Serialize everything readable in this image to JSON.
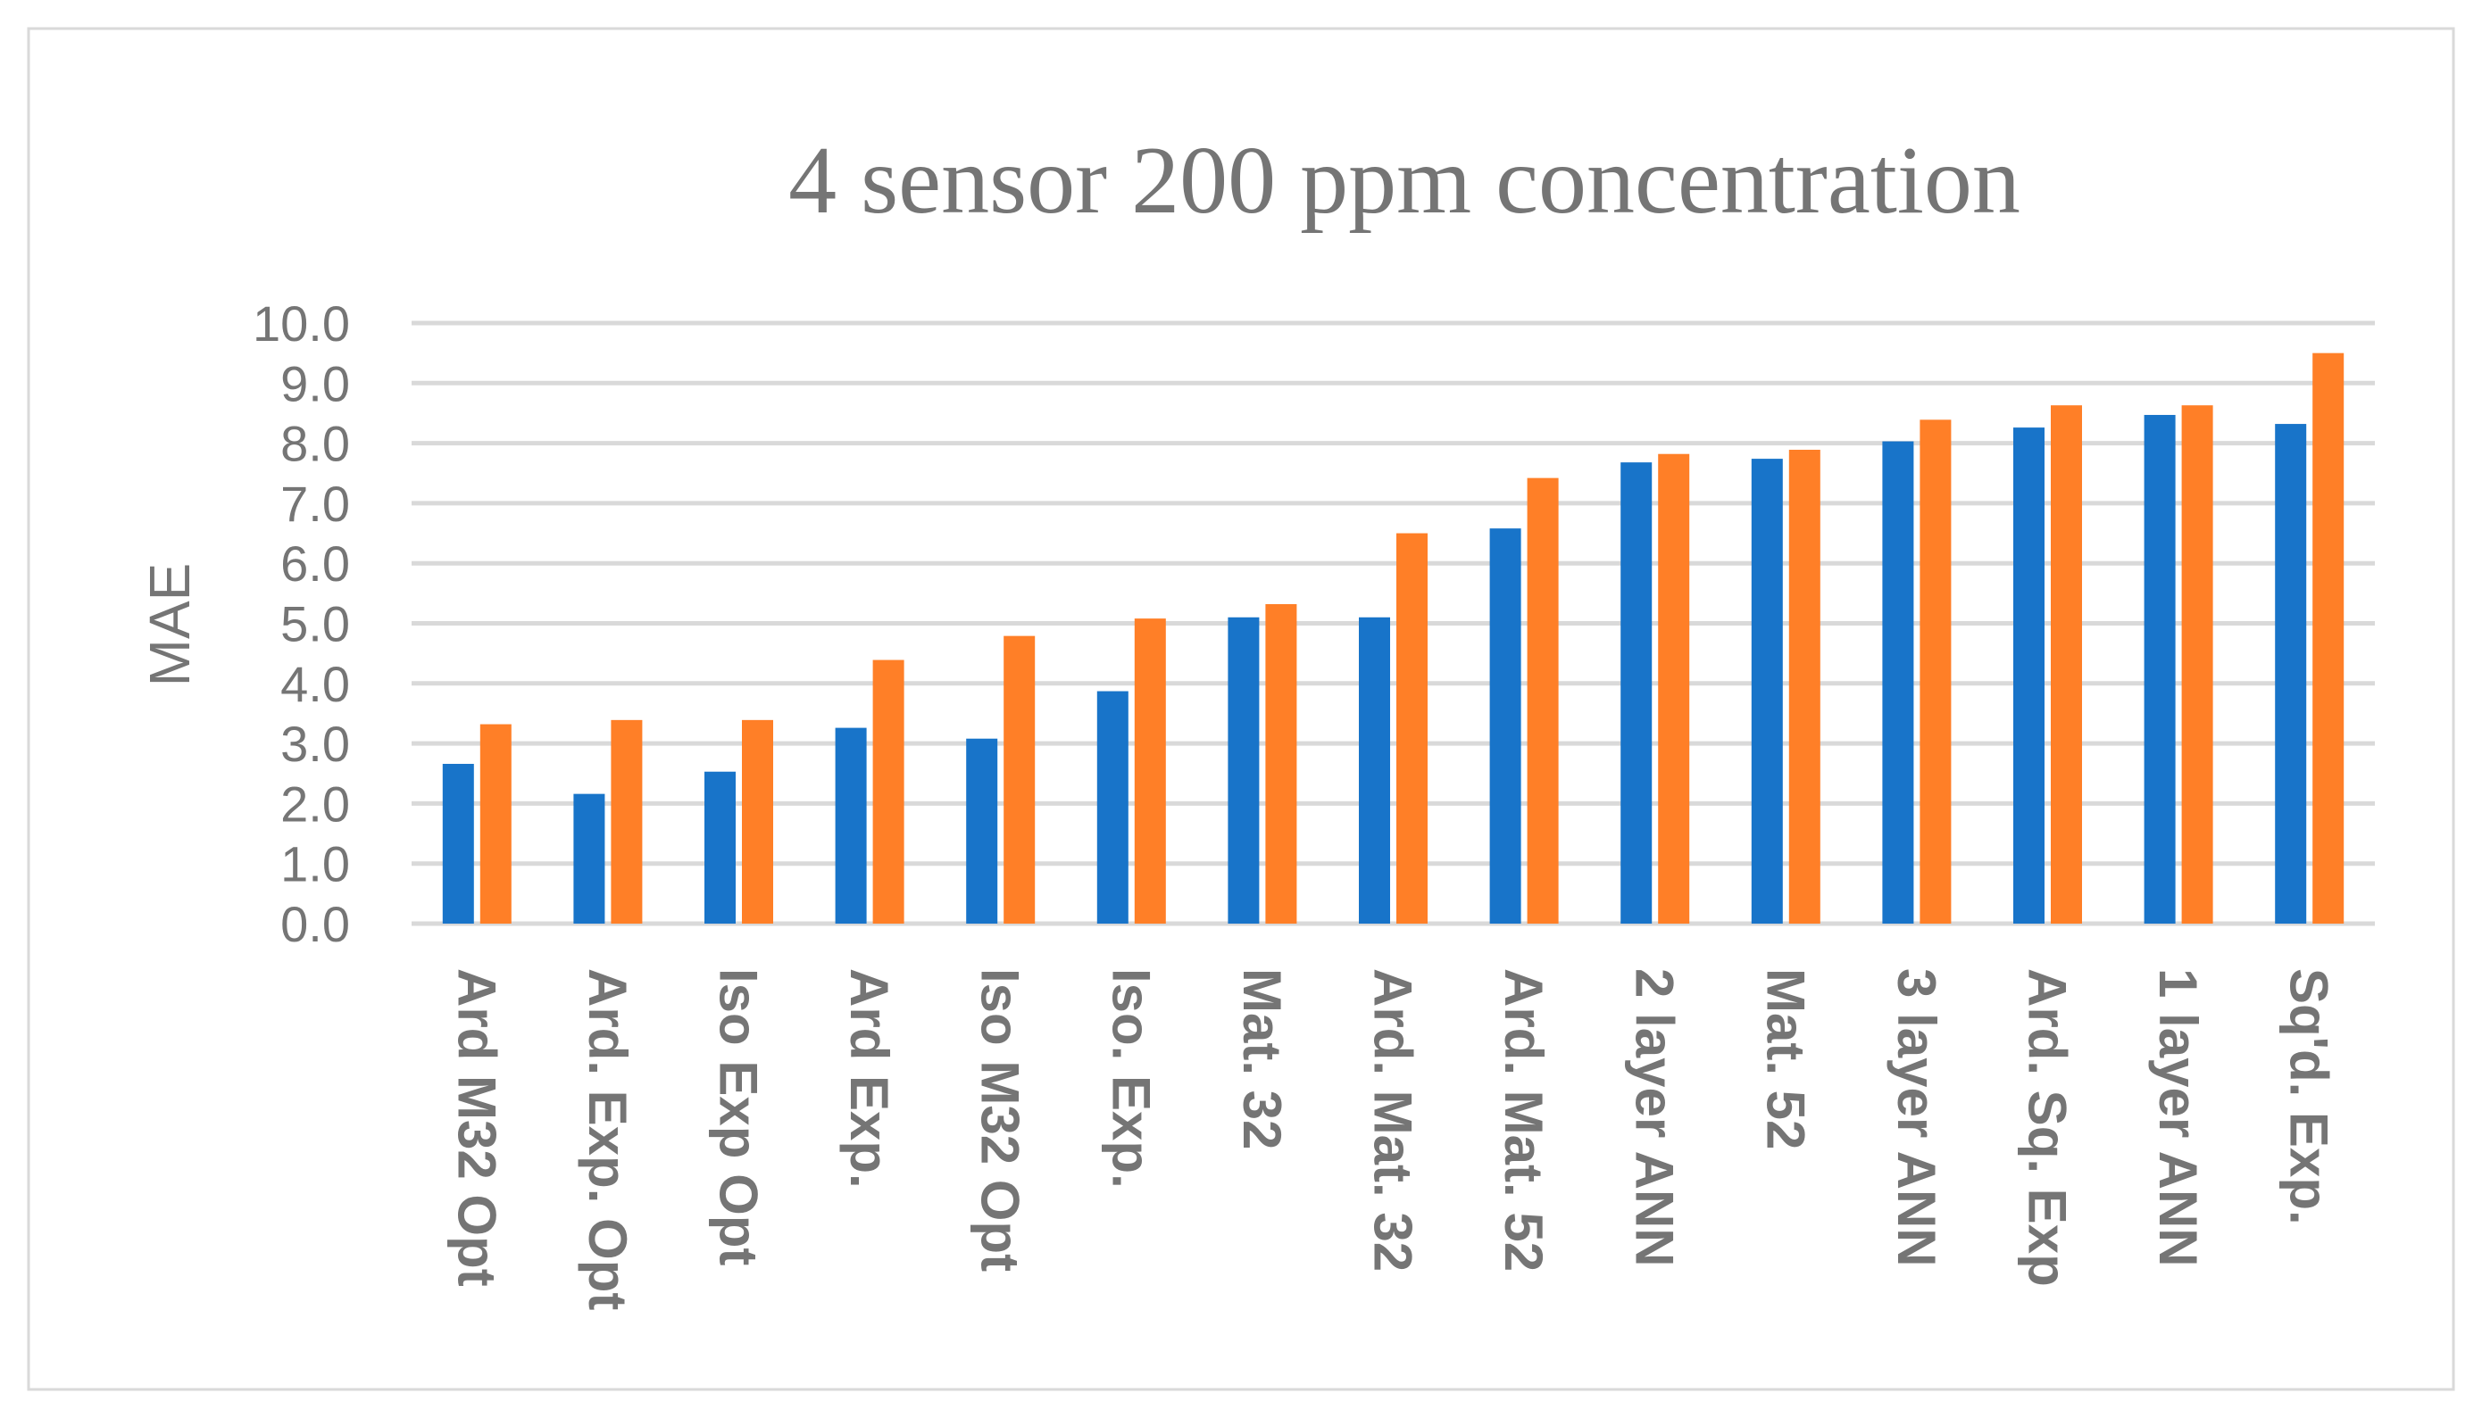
{
  "chart_data": {
    "type": "bar",
    "title": "4 sensor 200 ppm concentration",
    "xlabel": "",
    "ylabel": "MAE",
    "ylim": [
      0,
      10
    ],
    "yticks": [
      "0.0",
      "1.0",
      "2.0",
      "3.0",
      "4.0",
      "5.0",
      "6.0",
      "7.0",
      "8.0",
      "9.0",
      "10.0"
    ],
    "grid": true,
    "legend": "none",
    "categories": [
      "Ard M32 Opt",
      "Ard. Exp. Opt",
      "Iso Exp Opt",
      "Ard Exp.",
      "Iso M32 Opt",
      "Iso. Exp.",
      "Mat. 32",
      "Ard. Mat. 32",
      "Ard. Mat. 52",
      "2 layer ANN",
      "Mat. 52",
      "3 layer ANN",
      "Ard. Sq. Exp",
      "1 layer ANN",
      "Sq'd. Exp."
    ],
    "series": [
      {
        "color": "#1874C9",
        "values": [
          2.66,
          2.16,
          2.53,
          3.26,
          3.08,
          3.87,
          5.1,
          5.1,
          6.58,
          7.68,
          7.74,
          8.03,
          8.26,
          8.47,
          8.32
        ]
      },
      {
        "color": "#FF7F27",
        "values": [
          3.32,
          3.39,
          3.39,
          4.39,
          4.79,
          5.08,
          5.32,
          6.5,
          7.42,
          7.82,
          7.89,
          8.39,
          8.63,
          8.63,
          9.5
        ]
      }
    ]
  }
}
